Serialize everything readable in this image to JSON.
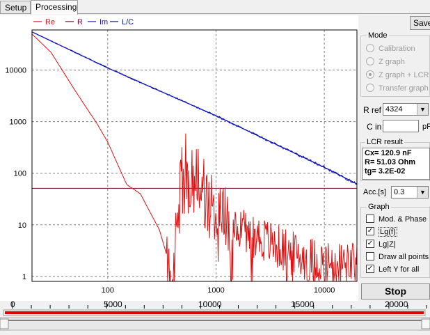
{
  "tabs": [
    {
      "label": "Setup"
    },
    {
      "label": "Processing"
    }
  ],
  "save_label": "Save",
  "legend": [
    {
      "label": "Re",
      "color": "#e01010"
    },
    {
      "label": "R",
      "color": "#800020"
    },
    {
      "label": "Im",
      "color": "#0000e0"
    },
    {
      "label": "L/C",
      "color": "#000080"
    }
  ],
  "colors": {
    "re": "#e01010",
    "r": "#800030",
    "im": "#1818d8",
    "lc": "#00107a",
    "slider": "#e00000"
  },
  "mode": {
    "title": "Mode",
    "options": [
      {
        "label": "Calibration",
        "checked": false
      },
      {
        "label": "Z graph",
        "checked": false
      },
      {
        "label": "Z graph + LCR",
        "checked": true
      },
      {
        "label": "Transfer graph",
        "checked": false
      }
    ]
  },
  "rref": {
    "label": "R ref",
    "value": "4324"
  },
  "cin": {
    "label": "C in",
    "value": "",
    "unit": "pF"
  },
  "lcr": {
    "title": "LCR result",
    "lines": [
      "Cx= 120.9 nF",
      "R= 51.03 Ohm",
      "tg= 3.2E-02"
    ]
  },
  "acc": {
    "label": "Acc.[s]",
    "value": "0.3"
  },
  "graph": {
    "title": "Graph",
    "options": [
      {
        "label": "Mod. & Phase",
        "checked": false
      },
      {
        "label": "Lg(f)",
        "checked": true
      },
      {
        "label": "Lg|Z|",
        "checked": true
      },
      {
        "label": "Draw all points",
        "checked": false
      },
      {
        "label": "Left Y for all",
        "checked": true
      }
    ]
  },
  "stop_label": "Stop",
  "slider": {
    "ticks": [
      "0",
      "5000",
      "10000",
      "15000",
      "20000"
    ]
  },
  "chart_data": {
    "type": "line",
    "x_scale": "log",
    "y_scale": "log",
    "xlim": [
      20,
      20000
    ],
    "ylim": [
      0.8,
      60000
    ],
    "x_ticks": [
      "100",
      "1000",
      "10000"
    ],
    "y_ticks": [
      "1",
      "10",
      "100",
      "1000",
      "10000"
    ],
    "grid": true,
    "series": [
      {
        "name": "Re",
        "values": [
          [
            20,
            50000
          ],
          [
            30,
            22000
          ],
          [
            50,
            4000
          ],
          [
            80,
            900
          ],
          [
            100,
            400
          ],
          [
            150,
            60
          ],
          [
            200,
            40
          ],
          [
            300,
            8
          ],
          [
            400,
            1
          ],
          [
            500,
            200
          ],
          [
            1000,
            20
          ],
          [
            2000,
            8
          ],
          [
            5000,
            3
          ],
          [
            10000,
            2
          ],
          [
            20000,
            2
          ]
        ]
      },
      {
        "name": "R",
        "values": [
          [
            20,
            51.03
          ],
          [
            20000,
            51.03
          ]
        ]
      },
      {
        "name": "Im",
        "values": [
          [
            20,
            55000
          ],
          [
            100,
            11000
          ],
          [
            1000,
            1300
          ],
          [
            10000,
            130
          ],
          [
            20000,
            62
          ]
        ]
      },
      {
        "name": "L/C",
        "values": [
          [
            20,
            55000
          ],
          [
            100,
            11000
          ],
          [
            1000,
            1300
          ],
          [
            10000,
            130
          ],
          [
            20000,
            62
          ]
        ]
      }
    ]
  }
}
